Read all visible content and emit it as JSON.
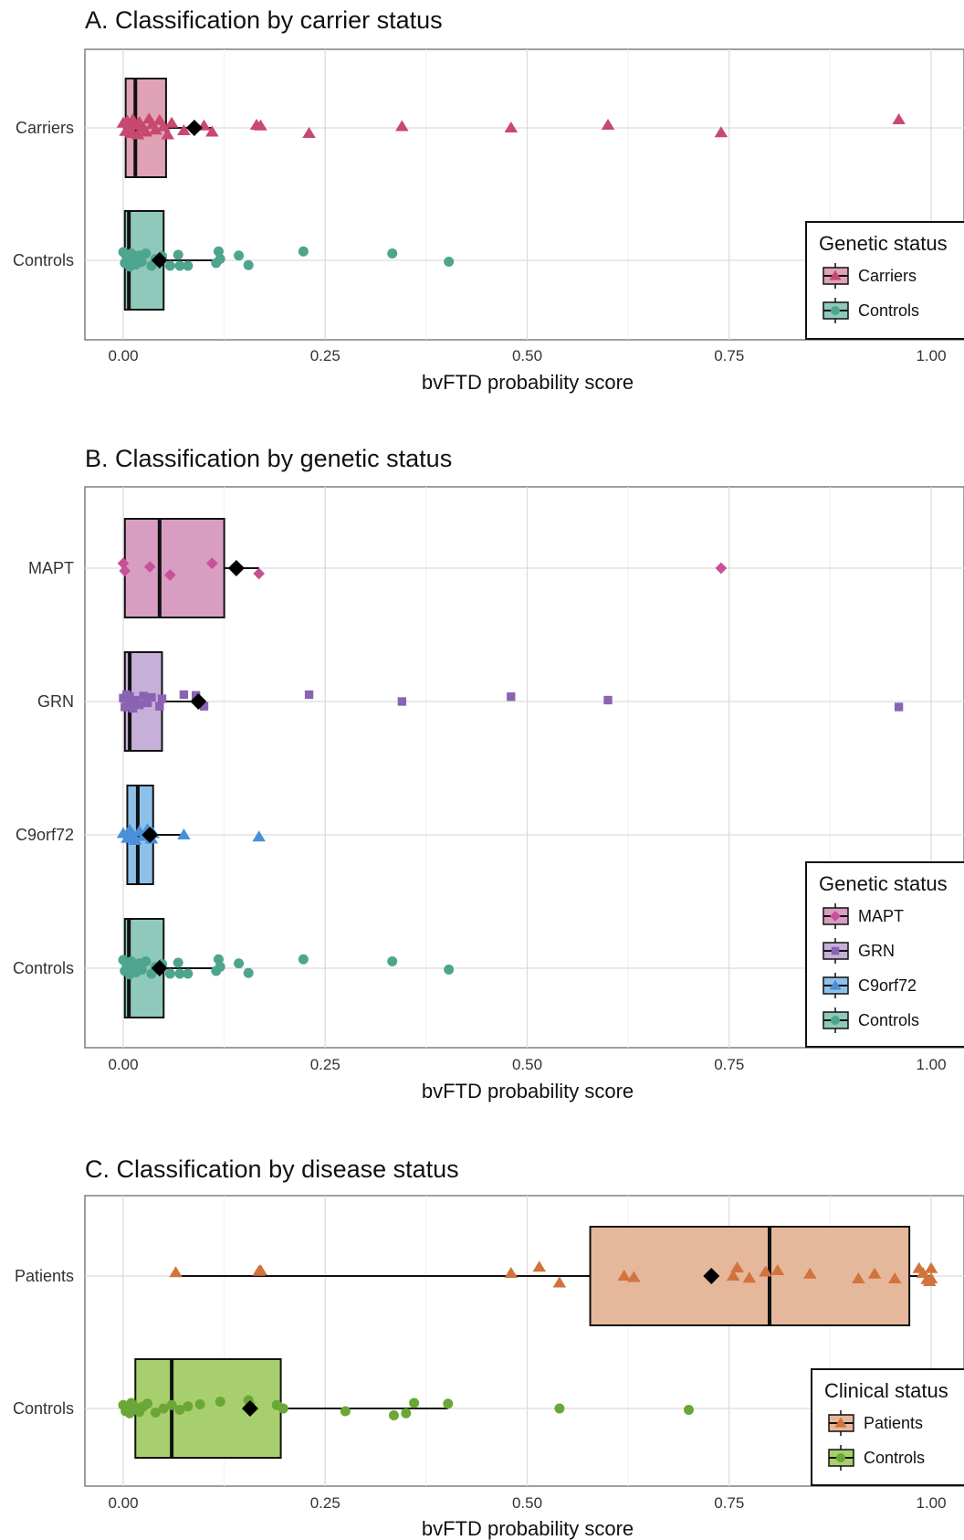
{
  "chart_data": [
    {
      "type": "boxplot",
      "title": "A. Classification by carrier status",
      "xlabel": "bvFTD probability score",
      "ylabel": "",
      "xlim": [
        0.0,
        1.0
      ],
      "xticks": [
        "0.00",
        "0.25",
        "0.50",
        "0.75",
        "1.00"
      ],
      "grid": true,
      "legend": {
        "title": "Genetic status",
        "position": "right",
        "items": [
          "Carriers",
          "Controls"
        ]
      },
      "categories": [
        "Carriers",
        "Controls"
      ],
      "series": [
        {
          "name": "Carriers",
          "color": "#c7496f",
          "fill": "#e0a2b6",
          "marker": "triangle",
          "box": {
            "q1": 0.003,
            "median": 0.015,
            "q3": 0.053,
            "whisker_low": 0.0,
            "whisker_high": 0.11,
            "mean": 0.088
          },
          "points": [
            [
              0.0,
              0.07
            ],
            [
              0.003,
              -0.05
            ],
            [
              0.005,
              0.1
            ],
            [
              0.008,
              0.0
            ],
            [
              0.01,
              -0.08
            ],
            [
              0.012,
              0.12
            ],
            [
              0.015,
              0.04
            ],
            [
              0.018,
              -0.1
            ],
            [
              0.02,
              0.08
            ],
            [
              0.025,
              0.0
            ],
            [
              0.028,
              -0.06
            ],
            [
              0.032,
              0.13
            ],
            [
              0.036,
              0.05
            ],
            [
              0.04,
              -0.03
            ],
            [
              0.045,
              0.11
            ],
            [
              0.05,
              0.02
            ],
            [
              0.055,
              -0.1
            ],
            [
              0.06,
              0.07
            ],
            [
              0.075,
              -0.04
            ],
            [
              0.1,
              0.03
            ],
            [
              0.11,
              -0.06
            ],
            [
              0.165,
              0.04
            ],
            [
              0.17,
              0.03
            ],
            [
              0.23,
              -0.08
            ],
            [
              0.345,
              0.02
            ],
            [
              0.48,
              0.0
            ],
            [
              0.6,
              0.04
            ],
            [
              0.74,
              -0.07
            ],
            [
              0.96,
              0.12
            ]
          ]
        },
        {
          "name": "Controls",
          "color": "#4ea58e",
          "fill": "#8fc9bb",
          "marker": "circle",
          "box": {
            "q1": 0.002,
            "median": 0.007,
            "q3": 0.05,
            "whisker_low": 0.0,
            "whisker_high": 0.12,
            "mean": 0.045
          },
          "points": [
            [
              0.0,
              0.12
            ],
            [
              0.002,
              -0.04
            ],
            [
              0.004,
              0.06
            ],
            [
              0.006,
              0.0
            ],
            [
              0.008,
              -0.09
            ],
            [
              0.01,
              0.1
            ],
            [
              0.013,
              0.03
            ],
            [
              0.016,
              -0.06
            ],
            [
              0.02,
              0.07
            ],
            [
              0.023,
              -0.02
            ],
            [
              0.028,
              0.1
            ],
            [
              0.035,
              -0.08
            ],
            [
              0.04,
              0.02
            ],
            [
              0.048,
              0.06
            ],
            [
              0.058,
              -0.08
            ],
            [
              0.068,
              0.08
            ],
            [
              0.07,
              -0.08
            ],
            [
              0.08,
              -0.08
            ],
            [
              0.115,
              -0.04
            ],
            [
              0.118,
              0.13
            ],
            [
              0.12,
              0.02
            ],
            [
              0.143,
              0.07
            ],
            [
              0.155,
              -0.07
            ],
            [
              0.223,
              0.13
            ],
            [
              0.333,
              0.1
            ],
            [
              0.403,
              -0.02
            ]
          ]
        }
      ]
    },
    {
      "type": "boxplot",
      "title": "B. Classification by genetic status",
      "xlabel": "bvFTD probability score",
      "ylabel": "",
      "xlim": [
        0.0,
        1.0
      ],
      "xticks": [
        "0.00",
        "0.25",
        "0.50",
        "0.75",
        "1.00"
      ],
      "grid": true,
      "legend": {
        "title": "Genetic status",
        "position": "right",
        "items": [
          "MAPT",
          "GRN",
          "C9orf72",
          "Controls"
        ]
      },
      "categories": [
        "MAPT",
        "GRN",
        "C9orf72",
        "Controls"
      ],
      "series": [
        {
          "name": "MAPT",
          "color": "#c94f96",
          "fill": "#d79ec1",
          "marker": "diamond",
          "box": {
            "q1": 0.002,
            "median": 0.045,
            "q3": 0.125,
            "whisker_low": 0.0,
            "whisker_high": 0.168,
            "mean": 0.14
          },
          "points": [
            [
              0.0,
              0.07
            ],
            [
              0.002,
              -0.04
            ],
            [
              0.033,
              0.02
            ],
            [
              0.058,
              -0.1
            ],
            [
              0.11,
              0.07
            ],
            [
              0.168,
              -0.08
            ],
            [
              0.74,
              0.0
            ]
          ]
        },
        {
          "name": "GRN",
          "color": "#8a63b4",
          "fill": "#c6b0d9",
          "marker": "square",
          "box": {
            "q1": 0.002,
            "median": 0.008,
            "q3": 0.048,
            "whisker_low": 0.0,
            "whisker_high": 0.1,
            "mean": 0.093
          },
          "points": [
            [
              0.0,
              0.05
            ],
            [
              0.002,
              -0.08
            ],
            [
              0.004,
              0.1
            ],
            [
              0.006,
              -0.03
            ],
            [
              0.008,
              0.07
            ],
            [
              0.012,
              -0.1
            ],
            [
              0.015,
              0.02
            ],
            [
              0.02,
              -0.05
            ],
            [
              0.025,
              0.08
            ],
            [
              0.03,
              -0.02
            ],
            [
              0.035,
              0.06
            ],
            [
              0.045,
              -0.07
            ],
            [
              0.048,
              0.04
            ],
            [
              0.075,
              0.1
            ],
            [
              0.09,
              0.09
            ],
            [
              0.1,
              -0.07
            ],
            [
              0.23,
              0.1
            ],
            [
              0.345,
              0.0
            ],
            [
              0.48,
              0.07
            ],
            [
              0.6,
              0.02
            ],
            [
              0.96,
              -0.08
            ]
          ]
        },
        {
          "name": "C9orf72",
          "color": "#4a90d9",
          "fill": "#8ec1ea",
          "marker": "triangle",
          "box": {
            "q1": 0.005,
            "median": 0.018,
            "q3": 0.037,
            "whisker_low": 0.0,
            "whisker_high": 0.075,
            "mean": 0.033
          },
          "points": [
            [
              0.0,
              0.02
            ],
            [
              0.005,
              -0.05
            ],
            [
              0.008,
              0.07
            ],
            [
              0.012,
              0.0
            ],
            [
              0.015,
              -0.08
            ],
            [
              0.02,
              0.05
            ],
            [
              0.025,
              -0.02
            ],
            [
              0.03,
              0.08
            ],
            [
              0.035,
              -0.06
            ],
            [
              0.037,
              0.02
            ],
            [
              0.075,
              0.0
            ],
            [
              0.168,
              -0.03
            ]
          ]
        },
        {
          "name": "Controls",
          "color": "#4ea58e",
          "fill": "#8fc9bb",
          "marker": "circle",
          "box": {
            "q1": 0.002,
            "median": 0.007,
            "q3": 0.05,
            "whisker_low": 0.0,
            "whisker_high": 0.12,
            "mean": 0.045
          },
          "points": [
            [
              0.0,
              0.12
            ],
            [
              0.002,
              -0.04
            ],
            [
              0.004,
              0.06
            ],
            [
              0.006,
              0.0
            ],
            [
              0.008,
              -0.09
            ],
            [
              0.01,
              0.1
            ],
            [
              0.013,
              0.03
            ],
            [
              0.016,
              -0.06
            ],
            [
              0.02,
              0.07
            ],
            [
              0.023,
              -0.02
            ],
            [
              0.028,
              0.1
            ],
            [
              0.035,
              -0.08
            ],
            [
              0.04,
              0.02
            ],
            [
              0.048,
              0.06
            ],
            [
              0.058,
              -0.08
            ],
            [
              0.068,
              0.08
            ],
            [
              0.07,
              -0.08
            ],
            [
              0.08,
              -0.08
            ],
            [
              0.115,
              -0.04
            ],
            [
              0.118,
              0.13
            ],
            [
              0.12,
              0.02
            ],
            [
              0.143,
              0.07
            ],
            [
              0.155,
              -0.07
            ],
            [
              0.223,
              0.13
            ],
            [
              0.333,
              0.1
            ],
            [
              0.403,
              -0.02
            ]
          ]
        }
      ]
    },
    {
      "type": "boxplot",
      "title": "C. Classification by disease status",
      "xlabel": "bvFTD probability score",
      "ylabel": "",
      "xlim": [
        0.0,
        1.0
      ],
      "xticks": [
        "0.00",
        "0.25",
        "0.50",
        "0.75",
        "1.00"
      ],
      "grid": true,
      "legend": {
        "title": "Clinical status",
        "position": "right",
        "items": [
          "Patients",
          "Controls"
        ]
      },
      "categories": [
        "Patients",
        "Controls"
      ],
      "series": [
        {
          "name": "Patients",
          "color": "#d2733d",
          "fill": "#e5b79b",
          "marker": "triangle",
          "box": {
            "q1": 0.578,
            "median": 0.8,
            "q3": 0.973,
            "whisker_low": 0.065,
            "whisker_high": 1.0,
            "mean": 0.728
          },
          "points": [
            [
              0.065,
              0.05
            ],
            [
              0.168,
              0.07
            ],
            [
              0.17,
              0.08
            ],
            [
              0.48,
              0.04
            ],
            [
              0.515,
              0.13
            ],
            [
              0.54,
              -0.1
            ],
            [
              0.62,
              0.0
            ],
            [
              0.632,
              -0.02
            ],
            [
              0.755,
              0.0
            ],
            [
              0.76,
              0.12
            ],
            [
              0.775,
              -0.03
            ],
            [
              0.795,
              0.06
            ],
            [
              0.81,
              0.08
            ],
            [
              0.85,
              0.03
            ],
            [
              0.91,
              -0.04
            ],
            [
              0.93,
              0.03
            ],
            [
              0.955,
              -0.04
            ],
            [
              0.985,
              0.11
            ],
            [
              0.99,
              0.04
            ],
            [
              0.995,
              -0.05
            ],
            [
              1.0,
              0.11
            ],
            [
              0.998,
              -0.08
            ],
            [
              1.0,
              -0.04
            ]
          ]
        },
        {
          "name": "Controls",
          "color": "#6aa737",
          "fill": "#a8cf6e",
          "marker": "circle",
          "box": {
            "q1": 0.015,
            "median": 0.06,
            "q3": 0.195,
            "whisker_low": 0.0,
            "whisker_high": 0.402,
            "mean": 0.157
          },
          "points": [
            [
              0.0,
              0.05
            ],
            [
              0.003,
              -0.04
            ],
            [
              0.005,
              0.0
            ],
            [
              0.008,
              -0.07
            ],
            [
              0.01,
              0.08
            ],
            [
              0.015,
              0.02
            ],
            [
              0.02,
              -0.05
            ],
            [
              0.025,
              0.03
            ],
            [
              0.03,
              0.07
            ],
            [
              0.04,
              -0.06
            ],
            [
              0.05,
              0.0
            ],
            [
              0.06,
              0.05
            ],
            [
              0.07,
              -0.02
            ],
            [
              0.08,
              0.03
            ],
            [
              0.095,
              0.06
            ],
            [
              0.12,
              0.1
            ],
            [
              0.155,
              0.12
            ],
            [
              0.157,
              0.06
            ],
            [
              0.19,
              0.05
            ],
            [
              0.198,
              0.0
            ],
            [
              0.275,
              -0.04
            ],
            [
              0.335,
              -0.1
            ],
            [
              0.35,
              -0.07
            ],
            [
              0.36,
              0.08
            ],
            [
              0.402,
              0.07
            ],
            [
              0.54,
              0.0
            ],
            [
              0.7,
              -0.02
            ]
          ]
        }
      ]
    }
  ]
}
